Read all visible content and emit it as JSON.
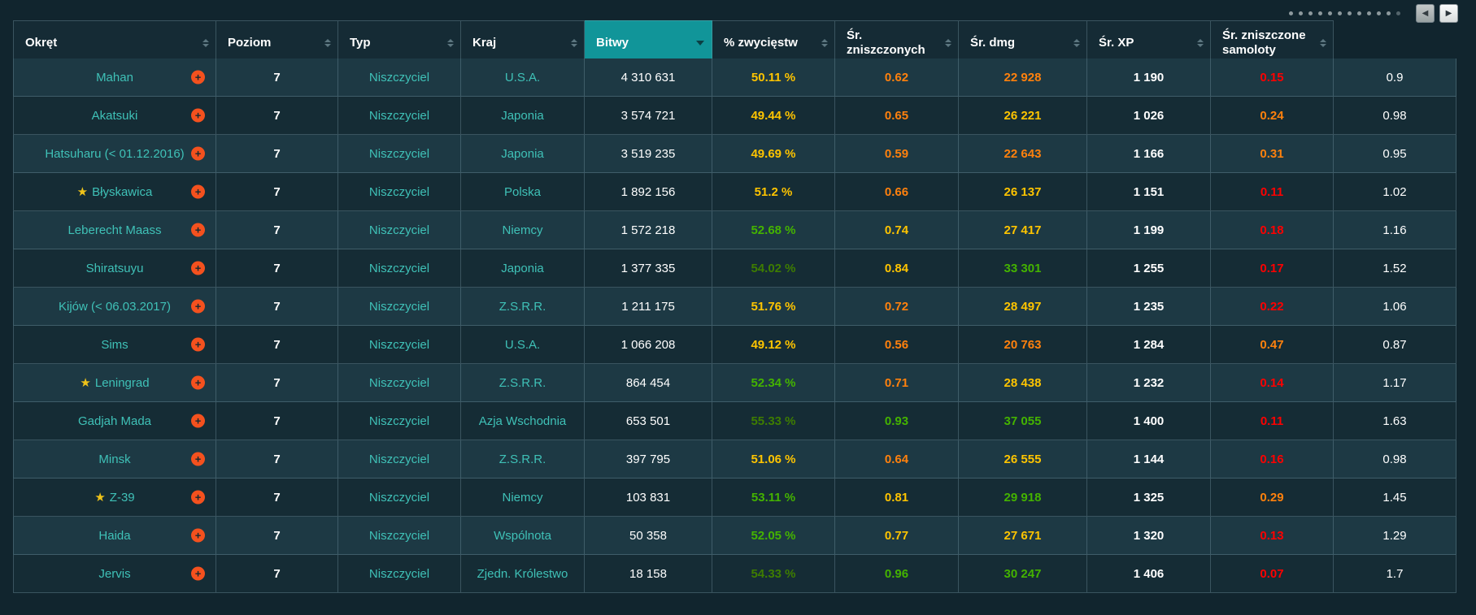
{
  "colors": {
    "yellow": "#fec400",
    "green": "#44b300",
    "dgreen": "#3e7d00",
    "orange": "#ff810d",
    "red": "#fe0000",
    "white": "#ffffff",
    "accent_teal": "#119599",
    "ship_teal": "#3fc1b7"
  },
  "pager": {
    "dots_total": 12,
    "active_dot": 12,
    "prev_icon": "◀",
    "next_icon": "▶"
  },
  "table": {
    "columns": [
      {
        "key": "ship",
        "label": "Okręt",
        "sorted": false
      },
      {
        "key": "tier",
        "label": "Poziom",
        "sorted": false
      },
      {
        "key": "type",
        "label": "Typ",
        "sorted": false
      },
      {
        "key": "country",
        "label": "Kraj",
        "sorted": false
      },
      {
        "key": "battles",
        "label": "Bitwy",
        "sorted": true,
        "sort_dir": "desc"
      },
      {
        "key": "win",
        "label": "% zwycięstw",
        "sorted": false
      },
      {
        "key": "frags",
        "label": "Śr. zniszczonych",
        "sorted": false
      },
      {
        "key": "dmg",
        "label": "Śr. dmg",
        "sorted": false
      },
      {
        "key": "xp",
        "label": "Śr. XP",
        "sorted": false
      },
      {
        "key": "planes",
        "label": "Śr. zniszczone samoloty",
        "sorted": false
      },
      {
        "key": "extra",
        "label": "",
        "sorted": false
      }
    ],
    "rows": [
      {
        "ship": "Mahan",
        "premium": false,
        "tier": "7",
        "type": "Niszczyciel",
        "country": "U.S.A.",
        "battles": "4 310 631",
        "win": "50.11 %",
        "win_color": "yellow",
        "frags": "0.62",
        "frags_color": "orange",
        "dmg": "22 928",
        "dmg_color": "orange",
        "xp": "1 190",
        "planes": "0.15",
        "planes_color": "red",
        "extra": "0.9"
      },
      {
        "ship": "Akatsuki",
        "premium": false,
        "tier": "7",
        "type": "Niszczyciel",
        "country": "Japonia",
        "battles": "3 574 721",
        "win": "49.44 %",
        "win_color": "yellow",
        "frags": "0.65",
        "frags_color": "orange",
        "dmg": "26 221",
        "dmg_color": "yellow",
        "xp": "1 026",
        "planes": "0.24",
        "planes_color": "orange",
        "extra": "0.98"
      },
      {
        "ship": "Hatsuharu (< 01.12.2016)",
        "premium": false,
        "tier": "7",
        "type": "Niszczyciel",
        "country": "Japonia",
        "battles": "3 519 235",
        "win": "49.69 %",
        "win_color": "yellow",
        "frags": "0.59",
        "frags_color": "orange",
        "dmg": "22 643",
        "dmg_color": "orange",
        "xp": "1 166",
        "planes": "0.31",
        "planes_color": "orange",
        "extra": "0.95"
      },
      {
        "ship": "Błyskawica",
        "premium": true,
        "tier": "7",
        "type": "Niszczyciel",
        "country": "Polska",
        "battles": "1 892 156",
        "win": "51.2 %",
        "win_color": "yellow",
        "frags": "0.66",
        "frags_color": "orange",
        "dmg": "26 137",
        "dmg_color": "yellow",
        "xp": "1 151",
        "planes": "0.11",
        "planes_color": "red",
        "extra": "1.02"
      },
      {
        "ship": "Leberecht Maass",
        "premium": false,
        "tier": "7",
        "type": "Niszczyciel",
        "country": "Niemcy",
        "battles": "1 572 218",
        "win": "52.68 %",
        "win_color": "green",
        "frags": "0.74",
        "frags_color": "yellow",
        "dmg": "27 417",
        "dmg_color": "yellow",
        "xp": "1 199",
        "planes": "0.18",
        "planes_color": "red",
        "extra": "1.16"
      },
      {
        "ship": "Shiratsuyu",
        "premium": false,
        "tier": "7",
        "type": "Niszczyciel",
        "country": "Japonia",
        "battles": "1 377 335",
        "win": "54.02 %",
        "win_color": "dgreen",
        "frags": "0.84",
        "frags_color": "yellow",
        "dmg": "33 301",
        "dmg_color": "green",
        "xp": "1 255",
        "planes": "0.17",
        "planes_color": "red",
        "extra": "1.52"
      },
      {
        "ship": "Kijów (< 06.03.2017)",
        "premium": false,
        "tier": "7",
        "type": "Niszczyciel",
        "country": "Z.S.R.R.",
        "battles": "1 211 175",
        "win": "51.76 %",
        "win_color": "yellow",
        "frags": "0.72",
        "frags_color": "orange",
        "dmg": "28 497",
        "dmg_color": "yellow",
        "xp": "1 235",
        "planes": "0.22",
        "planes_color": "red",
        "extra": "1.06"
      },
      {
        "ship": "Sims",
        "premium": false,
        "tier": "7",
        "type": "Niszczyciel",
        "country": "U.S.A.",
        "battles": "1 066 208",
        "win": "49.12 %",
        "win_color": "yellow",
        "frags": "0.56",
        "frags_color": "orange",
        "dmg": "20 763",
        "dmg_color": "orange",
        "xp": "1 284",
        "planes": "0.47",
        "planes_color": "orange",
        "extra": "0.87"
      },
      {
        "ship": "Leningrad",
        "premium": true,
        "tier": "7",
        "type": "Niszczyciel",
        "country": "Z.S.R.R.",
        "battles": "864 454",
        "win": "52.34 %",
        "win_color": "green",
        "frags": "0.71",
        "frags_color": "orange",
        "dmg": "28 438",
        "dmg_color": "yellow",
        "xp": "1 232",
        "planes": "0.14",
        "planes_color": "red",
        "extra": "1.17"
      },
      {
        "ship": "Gadjah Mada",
        "premium": false,
        "tier": "7",
        "type": "Niszczyciel",
        "country": "Azja Wschodnia",
        "battles": "653 501",
        "win": "55.33 %",
        "win_color": "dgreen",
        "frags": "0.93",
        "frags_color": "green",
        "dmg": "37 055",
        "dmg_color": "green",
        "xp": "1 400",
        "planes": "0.11",
        "planes_color": "red",
        "extra": "1.63"
      },
      {
        "ship": "Minsk",
        "premium": false,
        "tier": "7",
        "type": "Niszczyciel",
        "country": "Z.S.R.R.",
        "battles": "397 795",
        "win": "51.06 %",
        "win_color": "yellow",
        "frags": "0.64",
        "frags_color": "orange",
        "dmg": "26 555",
        "dmg_color": "yellow",
        "xp": "1 144",
        "planes": "0.16",
        "planes_color": "red",
        "extra": "0.98"
      },
      {
        "ship": "Z-39",
        "premium": true,
        "tier": "7",
        "type": "Niszczyciel",
        "country": "Niemcy",
        "battles": "103 831",
        "win": "53.11 %",
        "win_color": "green",
        "frags": "0.81",
        "frags_color": "yellow",
        "dmg": "29 918",
        "dmg_color": "green",
        "xp": "1 325",
        "planes": "0.29",
        "planes_color": "orange",
        "extra": "1.45"
      },
      {
        "ship": "Haida",
        "premium": false,
        "tier": "7",
        "type": "Niszczyciel",
        "country": "Wspólnota",
        "battles": "50 358",
        "win": "52.05 %",
        "win_color": "green",
        "frags": "0.77",
        "frags_color": "yellow",
        "dmg": "27 671",
        "dmg_color": "yellow",
        "xp": "1 320",
        "planes": "0.13",
        "planes_color": "red",
        "extra": "1.29"
      },
      {
        "ship": "Jervis",
        "premium": false,
        "tier": "7",
        "type": "Niszczyciel",
        "country": "Zjedn. Królestwo",
        "battles": "18 158",
        "win": "54.33 %",
        "win_color": "dgreen",
        "frags": "0.96",
        "frags_color": "green",
        "dmg": "30 247",
        "dmg_color": "green",
        "xp": "1 406",
        "planes": "0.07",
        "planes_color": "red",
        "extra": "1.7"
      }
    ],
    "icons": {
      "premium_star": "★",
      "expand_plus": "+"
    }
  }
}
